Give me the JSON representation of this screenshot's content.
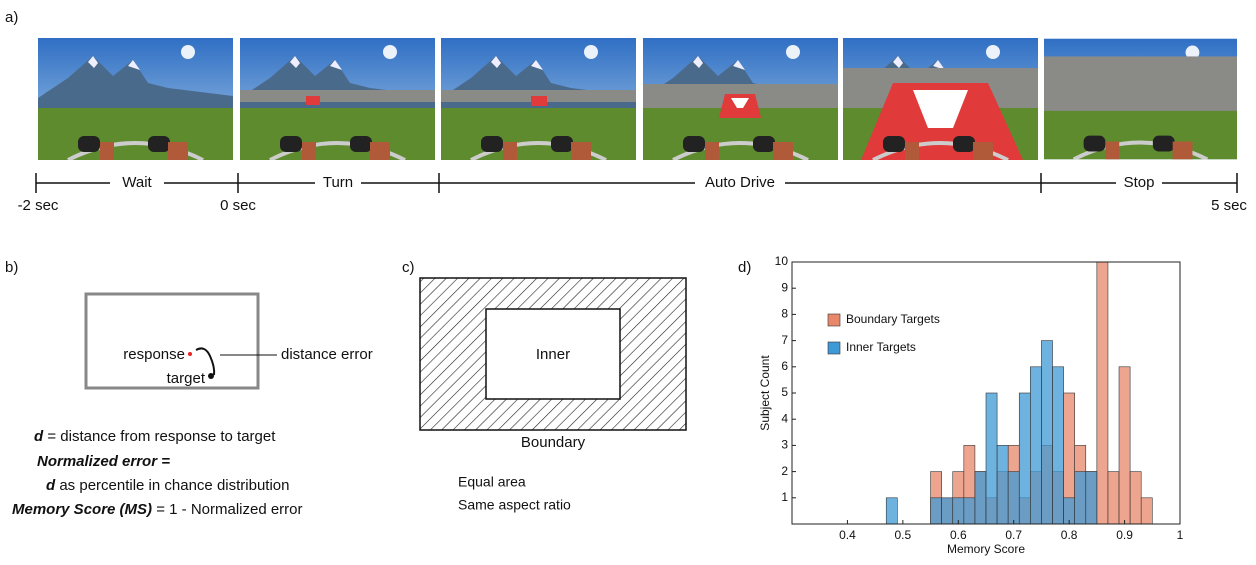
{
  "panel_a": {
    "label": "a)",
    "phases": [
      "Wait",
      "Turn",
      "Auto Drive",
      "Stop"
    ],
    "times": [
      "-2 sec",
      "0 sec",
      "5 sec"
    ]
  },
  "panel_b": {
    "label": "b)",
    "response": "response",
    "target": "target",
    "distance_error": "distance error",
    "lines": [
      [
        "d",
        "= distance from response to target"
      ],
      [
        "Normalized error =",
        ""
      ],
      [
        "d",
        "as percentile in chance distribution"
      ],
      [
        "Memory Score (MS)",
        "= 1 - Normalized error"
      ]
    ]
  },
  "panel_c": {
    "label": "c)",
    "inner": "Inner",
    "boundary": "Boundary",
    "notes": [
      "Equal area",
      "Same aspect ratio"
    ]
  },
  "panel_d": {
    "label": "d)"
  },
  "chart_data": {
    "type": "histogram",
    "xlabel": "Memory Score",
    "ylabel": "Subject Count",
    "bins": [
      0.47,
      0.49,
      0.51,
      0.53,
      0.55,
      0.57,
      0.59,
      0.61,
      0.63,
      0.65,
      0.67,
      0.69,
      0.71,
      0.73,
      0.75,
      0.77,
      0.79,
      0.81,
      0.83,
      0.85,
      0.87,
      0.89,
      0.91,
      0.93,
      0.95
    ],
    "series": [
      {
        "name": "Boundary Targets",
        "color": "#e8876a",
        "values": [
          0,
          0,
          0,
          0,
          2,
          1,
          2,
          3,
          2,
          1,
          2,
          3,
          1,
          2,
          3,
          2,
          5,
          3,
          2,
          10,
          2,
          6,
          2,
          1
        ]
      },
      {
        "name": "Inner Targets",
        "color": "#3d9ad6",
        "values": [
          1,
          0,
          0,
          0,
          1,
          1,
          1,
          1,
          2,
          5,
          3,
          2,
          5,
          6,
          7,
          6,
          1,
          2,
          2,
          0,
          0,
          0,
          0,
          0
        ]
      }
    ],
    "xlim": [
      0.3,
      1
    ],
    "ylim": [
      0,
      10
    ],
    "xticks": [
      0.4,
      0.5,
      0.6,
      0.7,
      0.8,
      0.9,
      1
    ],
    "yticks": [
      1,
      2,
      3,
      4,
      5,
      6,
      7,
      8,
      9,
      10
    ],
    "legend": "upper left"
  }
}
